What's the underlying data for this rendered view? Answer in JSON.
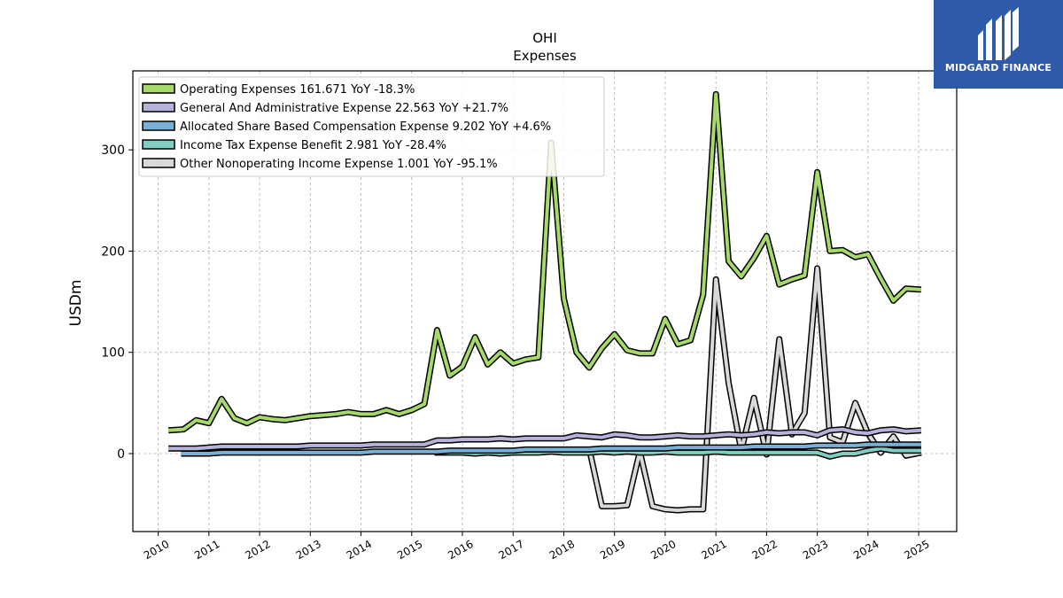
{
  "logo": {
    "brand": "MIDGARD FINANCE"
  },
  "chart_data": {
    "type": "line",
    "title": "OHI",
    "subtitle": "Expenses",
    "xlabel": "",
    "ylabel": "USDm",
    "xlim": [
      2009.5,
      2025.75
    ],
    "ylim": [
      -77,
      378
    ],
    "x_ticks": [
      "2010",
      "2011",
      "2012",
      "2013",
      "2014",
      "2015",
      "2016",
      "2017",
      "2018",
      "2019",
      "2020",
      "2021",
      "2022",
      "2023",
      "2024",
      "2025"
    ],
    "y_ticks": [
      0,
      100,
      200,
      300
    ],
    "grid": true,
    "legend_position": "top-left",
    "series": [
      {
        "name": "Operating Expenses",
        "legend": "Operating Expenses  161.671 YoY -18.3%",
        "color": "#a6d96a",
        "x": [
          2010.2,
          2010.5,
          2010.75,
          2011.0,
          2011.25,
          2011.5,
          2011.75,
          2012.0,
          2012.25,
          2012.5,
          2012.75,
          2013.0,
          2013.25,
          2013.5,
          2013.75,
          2014.0,
          2014.25,
          2014.5,
          2014.75,
          2015.0,
          2015.25,
          2015.5,
          2015.75,
          2016.0,
          2016.25,
          2016.5,
          2016.75,
          2017.0,
          2017.25,
          2017.5,
          2017.75,
          2018.0,
          2018.25,
          2018.5,
          2018.75,
          2019.0,
          2019.25,
          2019.5,
          2019.75,
          2020.0,
          2020.25,
          2020.5,
          2020.75,
          2021.0,
          2021.25,
          2021.5,
          2021.75,
          2022.0,
          2022.25,
          2022.5,
          2022.75,
          2023.0,
          2023.25,
          2023.5,
          2023.75,
          2024.0,
          2024.25,
          2024.5,
          2024.75,
          2025.05
        ],
        "y": [
          23,
          24,
          33,
          30,
          54,
          35,
          30,
          36,
          34,
          33,
          35,
          37,
          38,
          39,
          41,
          39,
          39,
          43,
          39,
          43,
          49,
          122,
          77,
          86,
          115,
          88,
          100,
          89,
          93,
          95,
          307,
          153,
          100,
          85,
          104,
          118,
          102,
          99,
          99,
          133,
          108,
          112,
          157,
          355,
          190,
          175,
          193,
          215,
          167,
          172,
          176,
          278,
          200,
          201,
          194,
          197,
          173,
          151,
          163,
          162
        ]
      },
      {
        "name": "General And Administrative Expense",
        "legend": "General And Administrative Expense  22.563 YoY +21.7%",
        "color": "#b5b3d9",
        "x": [
          2010.2,
          2010.5,
          2010.75,
          2011.0,
          2011.25,
          2011.5,
          2011.75,
          2012.0,
          2012.25,
          2012.5,
          2012.75,
          2013.0,
          2013.25,
          2013.5,
          2013.75,
          2014.0,
          2014.25,
          2014.5,
          2014.75,
          2015.0,
          2015.25,
          2015.5,
          2015.75,
          2016.0,
          2016.25,
          2016.5,
          2016.75,
          2017.0,
          2017.25,
          2017.5,
          2017.75,
          2018.0,
          2018.25,
          2018.5,
          2018.75,
          2019.0,
          2019.25,
          2019.5,
          2019.75,
          2020.0,
          2020.25,
          2020.5,
          2020.75,
          2021.0,
          2021.25,
          2021.5,
          2021.75,
          2022.0,
          2022.25,
          2022.5,
          2022.75,
          2023.0,
          2023.25,
          2023.5,
          2023.75,
          2024.0,
          2024.25,
          2024.5,
          2024.75,
          2025.05
        ],
        "y": [
          5,
          5,
          5,
          6,
          7,
          7,
          7,
          7,
          7,
          7,
          7,
          8,
          8,
          8,
          8,
          8,
          9,
          9,
          9,
          9,
          9,
          13,
          13,
          14,
          14,
          14,
          15,
          14,
          15,
          15,
          15,
          15,
          18,
          17,
          16,
          19,
          18,
          16,
          16,
          17,
          18,
          17,
          17,
          18,
          19,
          18,
          19,
          21,
          20,
          21,
          21,
          18,
          23,
          24,
          21,
          20,
          23,
          24,
          22,
          23
        ]
      },
      {
        "name": "Allocated Share Based Compensation Expense",
        "legend": "Allocated Share Based Compensation Expense  9.202 YoY +4.6%",
        "color": "#7bb0d6",
        "x": [
          2010.45,
          2010.75,
          2011.0,
          2011.25,
          2011.5,
          2011.75,
          2012.0,
          2012.25,
          2012.5,
          2012.75,
          2013.0,
          2013.25,
          2013.5,
          2013.75,
          2014.0,
          2014.25,
          2014.5,
          2014.75,
          2015.0,
          2015.25,
          2015.5,
          2015.75,
          2016.0,
          2016.25,
          2016.5,
          2016.75,
          2017.0,
          2017.25,
          2017.5,
          2017.75,
          2018.0,
          2018.25,
          2018.5,
          2018.75,
          2019.0,
          2019.25,
          2019.5,
          2019.75,
          2020.0,
          2020.25,
          2020.5,
          2020.75,
          2021.0,
          2021.25,
          2021.5,
          2021.75,
          2022.0,
          2022.25,
          2022.5,
          2022.75,
          2023.0,
          2023.25,
          2023.5,
          2023.75,
          2024.0,
          2024.25,
          2024.5,
          2024.75,
          2025.05
        ],
        "y": [
          0,
          0,
          0,
          1,
          1,
          1,
          1,
          1,
          1,
          1,
          1,
          1,
          1,
          1,
          1,
          2,
          2,
          2,
          2,
          2,
          2,
          3,
          3,
          3,
          3,
          3,
          3,
          4,
          4,
          4,
          4,
          4,
          4,
          5,
          5,
          5,
          5,
          5,
          5,
          6,
          6,
          6,
          6,
          6,
          6,
          7,
          7,
          7,
          7,
          7,
          8,
          8,
          8,
          8,
          9,
          9,
          9,
          9,
          9
        ]
      },
      {
        "name": "Income Tax Expense Benefit",
        "legend": "Income Tax Expense Benefit  2.981 YoY -28.4%",
        "color": "#80cdc1",
        "x": [
          2015.45,
          2015.75,
          2016.0,
          2016.25,
          2016.5,
          2016.75,
          2017.0,
          2017.25,
          2017.5,
          2017.75,
          2018.0,
          2018.25,
          2018.5,
          2018.75,
          2019.0,
          2019.25,
          2019.5,
          2019.75,
          2020.0,
          2020.25,
          2020.5,
          2020.75,
          2021.0,
          2021.25,
          2021.5,
          2021.75,
          2022.0,
          2022.25,
          2022.5,
          2022.75,
          2023.0,
          2023.25,
          2023.5,
          2023.75,
          2024.0,
          2024.25,
          2024.5,
          2024.75,
          2025.05
        ],
        "y": [
          1,
          1,
          1,
          0,
          1,
          0,
          1,
          1,
          1,
          2,
          1,
          1,
          1,
          2,
          1,
          2,
          1,
          1,
          2,
          1,
          1,
          1,
          2,
          1,
          1,
          1,
          1,
          1,
          1,
          1,
          1,
          -3,
          0,
          0,
          3,
          5,
          3,
          3,
          3
        ]
      },
      {
        "name": "Other Nonoperating Income Expense",
        "legend": "Other Nonoperating Income Expense  1.001 YoY -95.1%",
        "color": "#d9d9d9",
        "x": [
          2018.5,
          2018.75,
          2019.0,
          2019.25,
          2019.5,
          2019.75,
          2020.0,
          2020.25,
          2020.5,
          2020.75,
          2021.0,
          2021.25,
          2021.5,
          2021.75,
          2022.0,
          2022.25,
          2022.5,
          2022.75,
          2023.0,
          2023.25,
          2023.5,
          2023.75,
          2024.0,
          2024.25,
          2024.5,
          2024.75,
          2025.05
        ],
        "y": [
          5,
          -52,
          -52,
          -51,
          2,
          -52,
          -55,
          -56,
          -55,
          -55,
          172,
          70,
          3,
          55,
          -1,
          113,
          19,
          40,
          183,
          16,
          11,
          50,
          20,
          1,
          17,
          -2,
          1
        ]
      }
    ]
  }
}
